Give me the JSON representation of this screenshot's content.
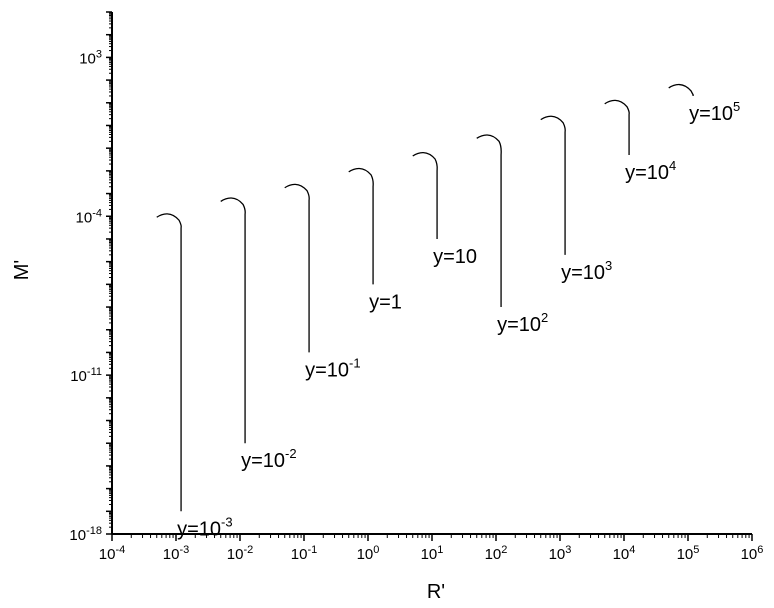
{
  "chart_data": {
    "type": "line",
    "title": "",
    "xlabel": "R'",
    "ylabel": "M'",
    "x_scale": "log",
    "y_scale": "log",
    "xlim": [
      0.0001,
      1000000
    ],
    "ylim": [
      1e-18,
      100000.0
    ],
    "x_ticks": [
      {
        "base": "10",
        "exp": "-4"
      },
      {
        "base": "10",
        "exp": "-3"
      },
      {
        "base": "10",
        "exp": "-2"
      },
      {
        "base": "10",
        "exp": "-1"
      },
      {
        "base": "10",
        "exp": "0"
      },
      {
        "base": "10",
        "exp": "1"
      },
      {
        "base": "10",
        "exp": "2"
      },
      {
        "base": "10",
        "exp": "3"
      },
      {
        "base": "10",
        "exp": "4"
      },
      {
        "base": "10",
        "exp": "5"
      },
      {
        "base": "10",
        "exp": "6"
      }
    ],
    "y_ticks": [
      {
        "base": "10",
        "exp": "-18"
      },
      {
        "base": "10",
        "exp": "-11"
      },
      {
        "base": "10",
        "exp": "-4"
      },
      {
        "base": "10",
        "exp": "3"
      }
    ],
    "grid": false,
    "legend": "none",
    "line_color": "#000000",
    "series": [
      {
        "label": {
          "main": "y=10",
          "sup": "-3"
        },
        "peak": [
          0.0005,
          0.0001
        ],
        "turn": [
          0.0012,
          3e-05
        ],
        "tail": [
          0.0012,
          1e-17
        ]
      },
      {
        "label": {
          "main": "y=10",
          "sup": "-2"
        },
        "peak": [
          0.005,
          0.0005
        ],
        "turn": [
          0.012,
          0.00012
        ],
        "tail": [
          0.012,
          1e-14
        ]
      },
      {
        "label": {
          "main": "y=10",
          "sup": "-1"
        },
        "peak": [
          0.05,
          0.002
        ],
        "turn": [
          0.12,
          0.0005
        ],
        "tail": [
          0.12,
          1e-10
        ]
      },
      {
        "label": {
          "main": "y=1",
          "sup": ""
        },
        "peak": [
          0.5,
          0.01
        ],
        "turn": [
          1.2,
          0.002
        ],
        "tail": [
          1.2,
          1e-07
        ]
      },
      {
        "label": {
          "main": "y=10",
          "sup": ""
        },
        "peak": [
          5,
          0.05
        ],
        "turn": [
          12,
          0.01
        ],
        "tail": [
          12,
          1e-05
        ]
      },
      {
        "label": {
          "main": "y=10",
          "sup": "2"
        },
        "peak": [
          50,
          0.3
        ],
        "turn": [
          120,
          0.05
        ],
        "tail": [
          120,
          1e-08
        ]
      },
      {
        "label": {
          "main": "y=10",
          "sup": "3"
        },
        "peak": [
          500,
          2
        ],
        "turn": [
          1200,
          0.5
        ],
        "tail": [
          1200,
          2e-06
        ]
      },
      {
        "label": {
          "main": "y=10",
          "sup": "4"
        },
        "peak": [
          5000,
          10
        ],
        "turn": [
          12000,
          3
        ],
        "tail": [
          12000,
          0.05
        ]
      },
      {
        "label": {
          "main": "y=10",
          "sup": "5"
        },
        "peak": [
          50000,
          50
        ],
        "turn": [
          120000,
          20
        ],
        "tail": [
          120000,
          20
        ]
      }
    ]
  }
}
